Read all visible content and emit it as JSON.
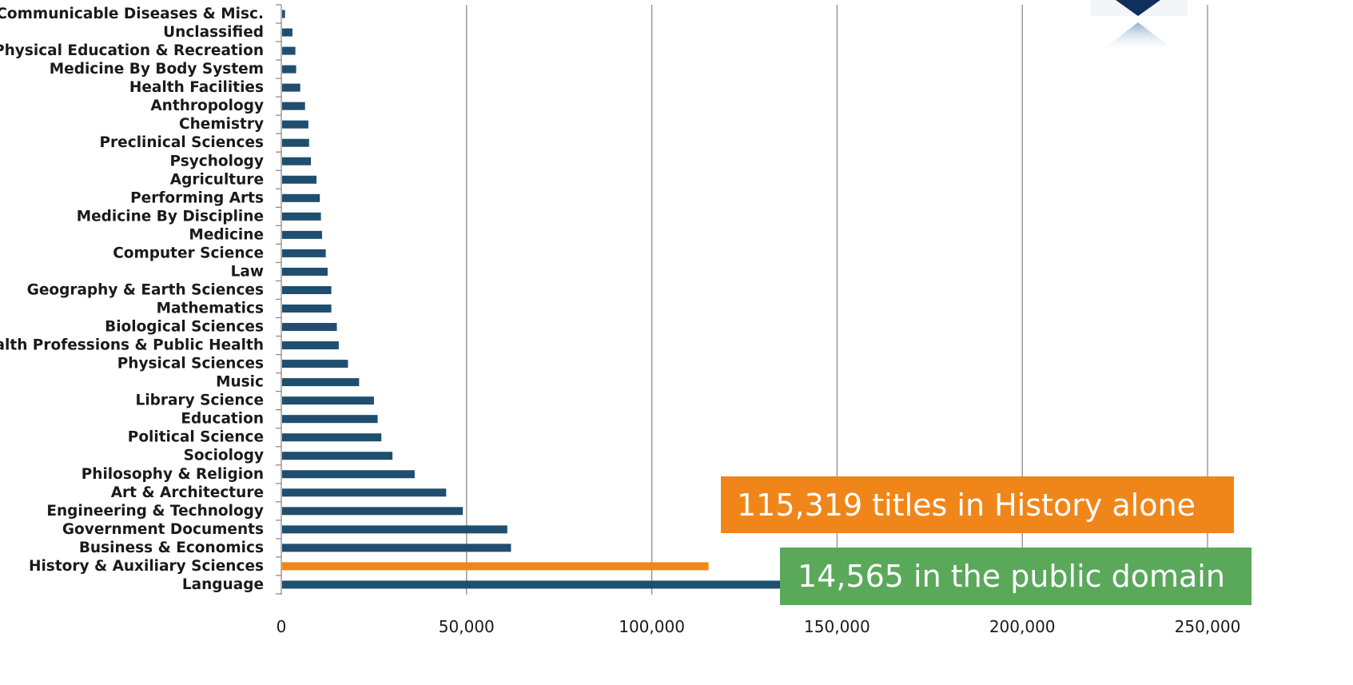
{
  "chart_data": {
    "type": "bar",
    "orientation": "horizontal",
    "categories": [
      "Language",
      "History & Auxiliary Sciences",
      "Business & Economics",
      "Government Documents",
      "Engineering & Technology",
      "Art & Architecture",
      "Philosophy & Religion",
      "Sociology",
      "Political Science",
      "Education",
      "Library Science",
      "Music",
      "Physical Sciences",
      "Health Professions & Public Health",
      "Biological Sciences",
      "Mathematics",
      "Geography & Earth Sciences",
      "Law",
      "Computer Science",
      "Medicine",
      "Medicine By Discipline",
      "Performing Arts",
      "Agriculture",
      "Psychology",
      "Preclinical Sciences",
      "Chemistry",
      "Anthropology",
      "Health Facilities",
      "Medicine By Body System",
      "Physical Education & Recreation",
      "Unclassified",
      "Communicable Diseases & Misc."
    ],
    "values": [
      135000,
      115319,
      62000,
      61000,
      49000,
      44500,
      36000,
      30000,
      27000,
      26000,
      25000,
      21000,
      18000,
      15500,
      15000,
      13500,
      13500,
      12500,
      12000,
      11000,
      10700,
      10400,
      9500,
      8000,
      7500,
      7300,
      6400,
      5100,
      4000,
      3800,
      3000,
      1000
    ],
    "highlight": {
      "category": "History & Auxiliary Sciences",
      "color": "#F0861A"
    },
    "bar_color": "#1F4E6F",
    "xlim": [
      0,
      250000
    ],
    "xticks": [
      "0",
      "50,000",
      "100,000",
      "150,000",
      "200,000",
      "250,000"
    ],
    "xtick_values": [
      0,
      50000,
      100000,
      150000,
      200000,
      250000
    ],
    "grid": true,
    "gridline_color": "#8c8c8c",
    "title": "",
    "xlabel": "",
    "ylabel": "",
    "annotations": [
      {
        "text": "115,319 titles in History alone",
        "color": "#F0861A"
      },
      {
        "text": "14,565 in the public domain",
        "color": "#5AA85A"
      }
    ]
  }
}
